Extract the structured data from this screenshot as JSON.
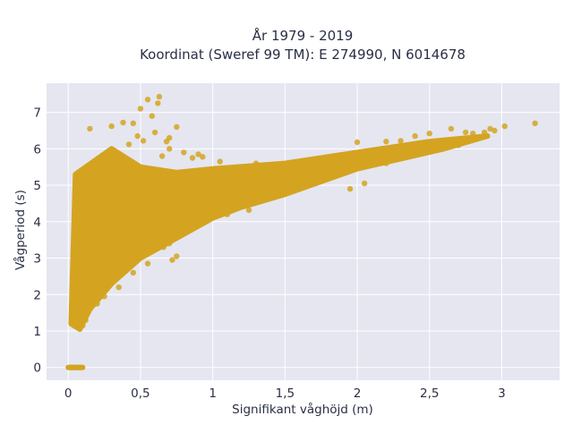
{
  "chart_data": {
    "type": "scatter",
    "title_line1": "År 1979 - 2019",
    "title_line2": "Koordinat (Sweref 99 TM): E 274990, N 6014678",
    "xlabel": "Signifikant våghöjd (m)",
    "ylabel": "Vågperiod (s)",
    "xlim": [
      -0.15,
      3.4
    ],
    "ylim": [
      -0.35,
      7.8
    ],
    "x_ticks": [
      {
        "value": 0,
        "label": "0"
      },
      {
        "value": 0.5,
        "label": "0,5"
      },
      {
        "value": 1,
        "label": "1"
      },
      {
        "value": 1.5,
        "label": "1,5"
      },
      {
        "value": 2,
        "label": "2"
      },
      {
        "value": 2.5,
        "label": "2,5"
      },
      {
        "value": 3,
        "label": "3"
      }
    ],
    "y_ticks": [
      {
        "value": 0,
        "label": "0"
      },
      {
        "value": 1,
        "label": "1"
      },
      {
        "value": 2,
        "label": "2"
      },
      {
        "value": 3,
        "label": "3"
      },
      {
        "value": 4,
        "label": "4"
      },
      {
        "value": 5,
        "label": "5"
      },
      {
        "value": 6,
        "label": "6"
      },
      {
        "value": 7,
        "label": "7"
      }
    ],
    "grid": true,
    "marker_color": "#d4a421",
    "plot_background": "#e5e6f0",
    "envelope_points": [
      [
        0.0,
        0.0
      ],
      [
        0.1,
        0.0
      ],
      [
        0.02,
        1.2
      ],
      [
        0.05,
        5.3
      ],
      [
        0.3,
        6.0
      ],
      [
        0.5,
        5.5
      ],
      [
        0.75,
        5.35
      ],
      [
        1.0,
        5.45
      ],
      [
        1.5,
        5.6
      ],
      [
        2.0,
        5.9
      ],
      [
        2.5,
        6.2
      ],
      [
        2.9,
        6.35
      ],
      [
        2.6,
        6.0
      ],
      [
        2.0,
        5.45
      ],
      [
        1.5,
        4.75
      ],
      [
        1.2,
        4.4
      ],
      [
        1.0,
        4.1
      ],
      [
        0.75,
        3.55
      ],
      [
        0.5,
        3.0
      ],
      [
        0.3,
        2.3
      ],
      [
        0.15,
        1.6
      ],
      [
        0.08,
        1.05
      ]
    ],
    "outlier_points": [
      [
        0.55,
        7.35
      ],
      [
        0.63,
        7.43
      ],
      [
        0.5,
        7.1
      ],
      [
        0.58,
        6.9
      ],
      [
        0.62,
        7.25
      ],
      [
        0.38,
        6.72
      ],
      [
        0.45,
        6.7
      ],
      [
        0.3,
        6.62
      ],
      [
        0.15,
        6.55
      ],
      [
        0.75,
        6.6
      ],
      [
        0.6,
        6.45
      ],
      [
        0.68,
        6.2
      ],
      [
        0.7,
        6.3
      ],
      [
        0.48,
        6.35
      ],
      [
        0.52,
        6.22
      ],
      [
        0.42,
        6.12
      ],
      [
        0.86,
        5.75
      ],
      [
        0.93,
        5.78
      ],
      [
        1.05,
        5.65
      ],
      [
        1.3,
        5.6
      ],
      [
        0.65,
        5.8
      ],
      [
        0.8,
        5.9
      ],
      [
        0.7,
        6.0
      ],
      [
        0.9,
        5.85
      ],
      [
        2.0,
        6.18
      ],
      [
        2.2,
        6.2
      ],
      [
        2.3,
        6.22
      ],
      [
        2.4,
        6.35
      ],
      [
        2.5,
        6.42
      ],
      [
        2.65,
        6.55
      ],
      [
        2.75,
        6.45
      ],
      [
        2.8,
        6.42
      ],
      [
        2.88,
        6.45
      ],
      [
        2.9,
        6.35
      ],
      [
        2.95,
        6.5
      ],
      [
        3.02,
        6.62
      ],
      [
        3.23,
        6.7
      ],
      [
        2.92,
        6.55
      ],
      [
        2.85,
        6.3
      ],
      [
        2.7,
        6.1
      ],
      [
        2.55,
        6.08
      ],
      [
        2.45,
        5.95
      ],
      [
        1.2,
        5.35
      ],
      [
        1.8,
        5.55
      ],
      [
        1.95,
        4.9
      ],
      [
        2.05,
        5.05
      ],
      [
        2.2,
        5.6
      ],
      [
        1.25,
        4.32
      ],
      [
        1.1,
        4.2
      ],
      [
        0.85,
        3.95
      ],
      [
        0.7,
        3.4
      ],
      [
        0.72,
        2.95
      ],
      [
        0.66,
        3.3
      ],
      [
        0.75,
        3.05
      ],
      [
        0.55,
        2.85
      ],
      [
        0.45,
        2.6
      ],
      [
        0.35,
        2.2
      ],
      [
        0.25,
        1.95
      ],
      [
        0.2,
        1.75
      ],
      [
        0.1,
        1.15
      ],
      [
        0.08,
        1.1
      ],
      [
        0.12,
        1.3
      ],
      [
        0.03,
        1.3
      ],
      [
        0.05,
        0.0
      ],
      [
        0.07,
        0.0
      ],
      [
        0.09,
        0.0
      ],
      [
        0.03,
        0.0
      ],
      [
        0.02,
        0.0
      ]
    ]
  }
}
